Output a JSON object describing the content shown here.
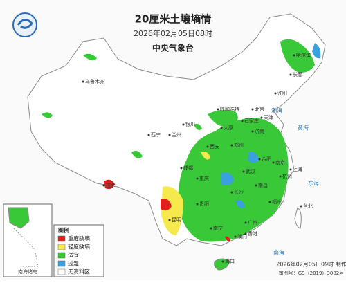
{
  "header": {
    "title": "20厘米土壤墒情",
    "subtitle": "2026年02月05日08时",
    "issuer": "中央气象台"
  },
  "legend": {
    "title": "图例",
    "items": [
      {
        "label": "重度缺墒",
        "color": "#e0201c"
      },
      {
        "label": "轻度缺墒",
        "color": "#f5e94c"
      },
      {
        "label": "适宜",
        "color": "#38c838"
      },
      {
        "label": "过湿",
        "color": "#3aa0e0"
      },
      {
        "label": "无资料区",
        "color": "#ffffff"
      }
    ]
  },
  "places": [
    "北京",
    "天津",
    "上海",
    "武汉",
    "长沙",
    "广州",
    "南宁",
    "海口",
    "拉萨",
    "成都",
    "重庆",
    "贵阳",
    "昆明",
    "西安",
    "郑州",
    "济南",
    "南京",
    "杭州",
    "福州",
    "台北",
    "香港",
    "澳门",
    "哈尔滨",
    "长春",
    "沈阳",
    "呼和浩特",
    "银川",
    "兰州",
    "西宁",
    "乌鲁木齐",
    "太原",
    "石家庄",
    "合肥",
    "南昌"
  ],
  "seas": [
    "渤海",
    "黄海",
    "东海",
    "南海"
  ],
  "inset": {
    "label": "南海诸岛"
  },
  "footer": {
    "made": "2026年02月05日09时 制作",
    "approval": "审图号：GS（2019）3082号"
  }
}
